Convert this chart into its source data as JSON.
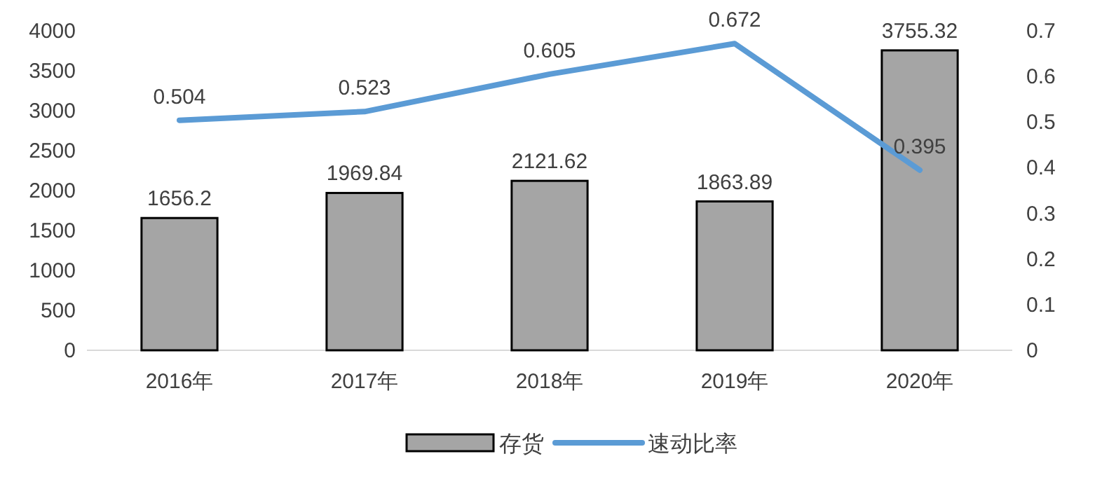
{
  "chart_data": {
    "type": "bar",
    "categories": [
      "2016年",
      "2017年",
      "2018年",
      "2019年",
      "2020年"
    ],
    "series": [
      {
        "name": "存货",
        "color": "#a5a5a5",
        "values": [
          1656.2,
          1969.84,
          2121.62,
          1863.89,
          3755.32
        ]
      },
      {
        "name": "速动比率",
        "type": "line",
        "axis": "y2",
        "color": "#5b9bd5",
        "values": [
          0.504,
          0.523,
          0.605,
          0.672,
          0.395
        ]
      }
    ],
    "ylim": [
      0,
      4000
    ],
    "yticks": [
      0,
      500,
      1000,
      1500,
      2000,
      2500,
      3000,
      3500,
      4000
    ],
    "y2lim": [
      0,
      0.7
    ],
    "y2ticks": [
      0,
      0.1,
      0.2,
      0.3,
      0.4,
      0.5,
      0.6,
      0.7
    ],
    "data_labels": true,
    "legend": "bottom"
  }
}
